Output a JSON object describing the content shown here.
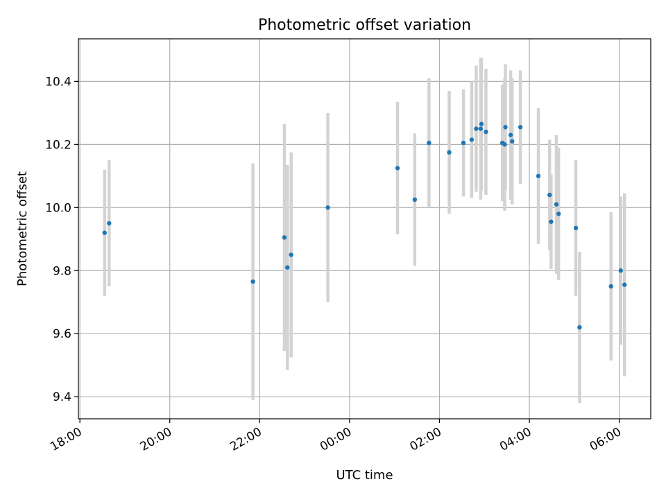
{
  "chart_data": {
    "type": "scatter",
    "title": "Photometric offset variation",
    "xlabel": "UTC time",
    "ylabel": "Photometric offset",
    "x_axis_kind": "time",
    "xlim": [
      "17:58",
      "06:42"
    ],
    "ylim": [
      9.33,
      10.535
    ],
    "x_ticks": [
      "18:00",
      "20:00",
      "22:00",
      "00:00",
      "02:00",
      "04:00",
      "06:00"
    ],
    "y_ticks": [
      9.4,
      9.6,
      9.8,
      10.0,
      10.2,
      10.4
    ],
    "y_tick_labels": [
      "9.4",
      "9.6",
      "9.8",
      "10.0",
      "10.2",
      "10.4"
    ],
    "grid": true,
    "legend": "none",
    "colors": {
      "point": "#1f77b4",
      "errorbar": "#d3d3d3",
      "grid": "#b0b0b0"
    },
    "series": [
      {
        "points": [
          {
            "x": "18:33",
            "y": 9.92,
            "err": 0.2
          },
          {
            "x": "18:39",
            "y": 9.95,
            "err": 0.2
          },
          {
            "x": "21:51",
            "y": 9.765,
            "err": 0.375
          },
          {
            "x": "22:33",
            "y": 9.905,
            "err": 0.36
          },
          {
            "x": "22:37",
            "y": 9.81,
            "err": 0.325
          },
          {
            "x": "22:42",
            "y": 9.85,
            "err": 0.325
          },
          {
            "x": "23:31",
            "y": 10.0,
            "err": 0.3
          },
          {
            "x": "01:04",
            "y": 10.125,
            "err": 0.21
          },
          {
            "x": "01:27",
            "y": 10.025,
            "err": 0.21
          },
          {
            "x": "01:46",
            "y": 10.205,
            "err": 0.205
          },
          {
            "x": "02:13",
            "y": 10.175,
            "err": 0.195
          },
          {
            "x": "02:32",
            "y": 10.205,
            "err": 0.17
          },
          {
            "x": "02:43",
            "y": 10.215,
            "err": 0.185
          },
          {
            "x": "02:49",
            "y": 10.25,
            "err": 0.2
          },
          {
            "x": "02:55",
            "y": 10.25,
            "err": 0.225
          },
          {
            "x": "02:56",
            "y": 10.265,
            "err": 0.21
          },
          {
            "x": "03:02",
            "y": 10.24,
            "err": 0.2
          },
          {
            "x": "03:24",
            "y": 10.205,
            "err": 0.185
          },
          {
            "x": "03:27",
            "y": 10.2,
            "err": 0.21
          },
          {
            "x": "03:28",
            "y": 10.255,
            "err": 0.2
          },
          {
            "x": "03:35",
            "y": 10.23,
            "err": 0.205
          },
          {
            "x": "03:37",
            "y": 10.21,
            "err": 0.2
          },
          {
            "x": "03:48",
            "y": 10.255,
            "err": 0.18
          },
          {
            "x": "04:12",
            "y": 10.1,
            "err": 0.215
          },
          {
            "x": "04:27",
            "y": 10.04,
            "err": 0.175
          },
          {
            "x": "04:29",
            "y": 9.955,
            "err": 0.15
          },
          {
            "x": "04:36",
            "y": 10.01,
            "err": 0.22
          },
          {
            "x": "04:39",
            "y": 9.98,
            "err": 0.21
          },
          {
            "x": "05:02",
            "y": 9.935,
            "err": 0.215
          },
          {
            "x": "05:07",
            "y": 9.62,
            "err": 0.24
          },
          {
            "x": "05:49",
            "y": 9.75,
            "err": 0.235
          },
          {
            "x": "06:02",
            "y": 9.8,
            "err": 0.235
          },
          {
            "x": "06:07",
            "y": 9.755,
            "err": 0.29
          }
        ]
      }
    ]
  }
}
